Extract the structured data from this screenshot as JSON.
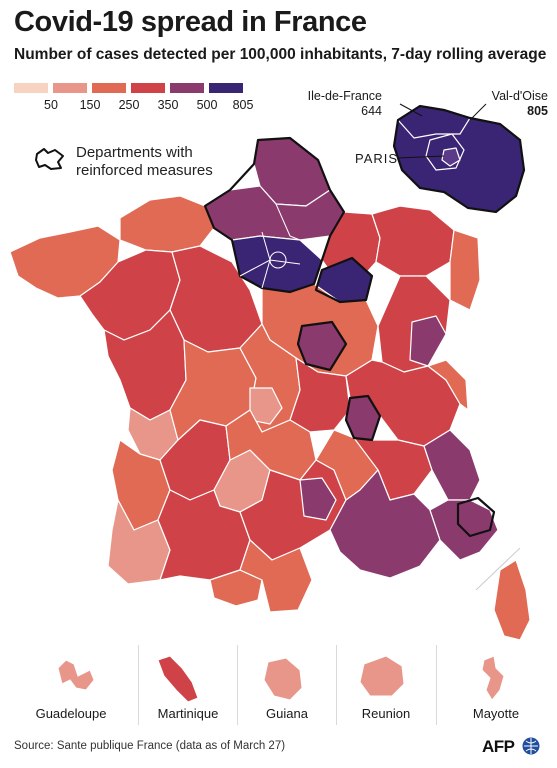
{
  "header": {
    "title": "Covid-19 spread in France",
    "subtitle": "Number of cases detected per 100,000 inhabitants, 7-day rolling average"
  },
  "legend": {
    "thresholds": [
      "50",
      "150",
      "250",
      "350",
      "500",
      "805"
    ],
    "colors": [
      "#f9d3c1",
      "#e8958a",
      "#e06a54",
      "#cf4348",
      "#8b3a6e",
      "#3a2474"
    ]
  },
  "note": {
    "text": "Departments with reinforced measures",
    "icon": "outlined-region-icon"
  },
  "callouts": {
    "ile_de_france_name": "Ile-de-France",
    "ile_de_france_value": "644",
    "val_doise_name": "Val-d'Oise",
    "val_doise_value": "805",
    "paris": "PARIS"
  },
  "overseas": [
    {
      "name": "Guadeloupe",
      "color": "#e8958a"
    },
    {
      "name": "Martinique",
      "color": "#cf4348"
    },
    {
      "name": "Guiana",
      "color": "#e8958a"
    },
    {
      "name": "Reunion",
      "color": "#e8958a"
    },
    {
      "name": "Mayotte",
      "color": "#e8958a"
    }
  ],
  "footer": {
    "source": "Source: Sante publique France (data as of March 27)",
    "agency": "AFP"
  }
}
